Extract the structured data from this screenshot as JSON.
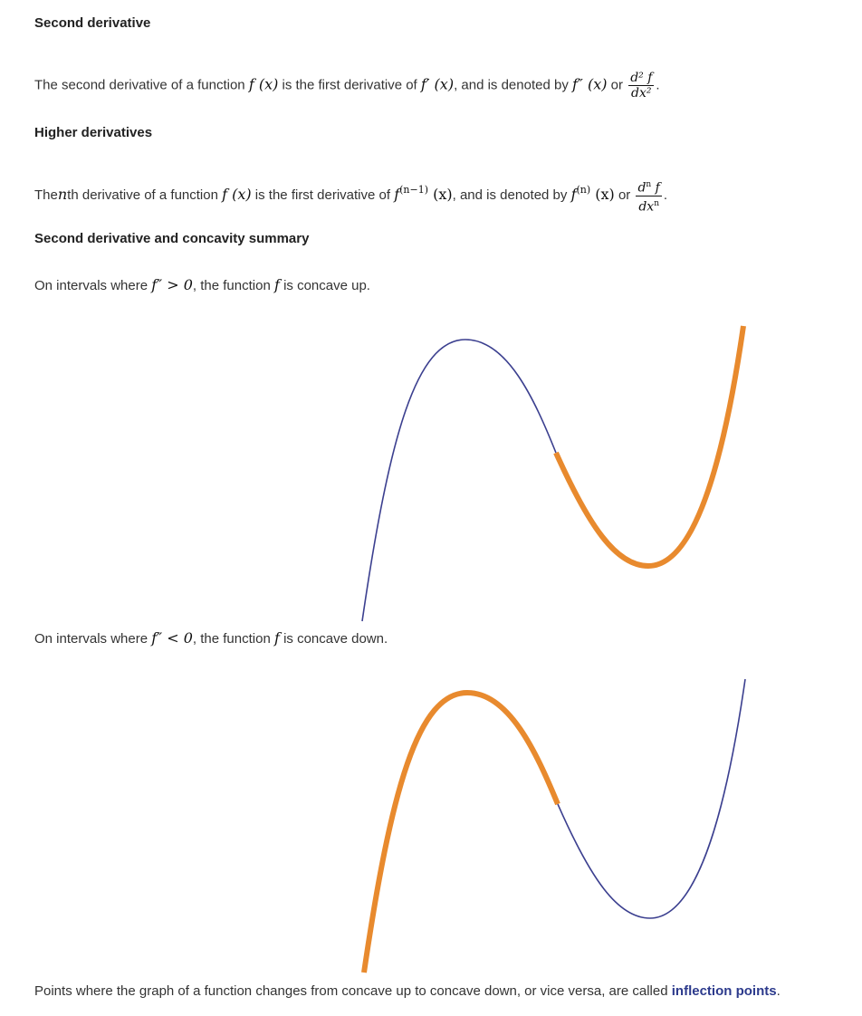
{
  "s1": {
    "heading": "Second derivative",
    "t1": "The second derivative of a function",
    "fx": "f (x)",
    "t2": "is the first derivative of",
    "fpx": "f′ (x)",
    "t3": ", and is denoted by",
    "fppx": "f″ (x)",
    "t4": "or",
    "num": "d² f",
    "den": "dx²",
    "end": "."
  },
  "s2": {
    "heading": "Higher derivatives",
    "t0": "The",
    "n": "n",
    "t1": "th derivative of a function",
    "fx": "f (x)",
    "t2": "is the first derivative of",
    "f": "f",
    "sup1": "(n−1)",
    "x1": "(x)",
    "t3": ", and is denoted by",
    "sup2": "(n)",
    "x2": "(x)",
    "t4": "or",
    "num_d": "d",
    "num_sup": "n",
    "num_f": " f",
    "den_dx": "dx",
    "den_sup": "n",
    "end": "."
  },
  "s3": {
    "heading": "Second derivative and concavity summary",
    "up": {
      "t1": "On intervals where",
      "cond": "f″ > 0",
      "t2": ", the function",
      "f": "f",
      "t3": "is concave up."
    },
    "down": {
      "t1": "On intervals where",
      "cond": "f″ < 0",
      "t2": ", the function",
      "f": "f",
      "t3": "is concave down."
    },
    "inflection": {
      "t1": "Points where the graph of a function changes from concave up to concave down, or vice versa, are called",
      "link": "inflection points",
      "end": "."
    }
  },
  "colors": {
    "curve": "#3b3f8f",
    "highlight": "#e88a2e",
    "link": "#2c3a8c"
  }
}
